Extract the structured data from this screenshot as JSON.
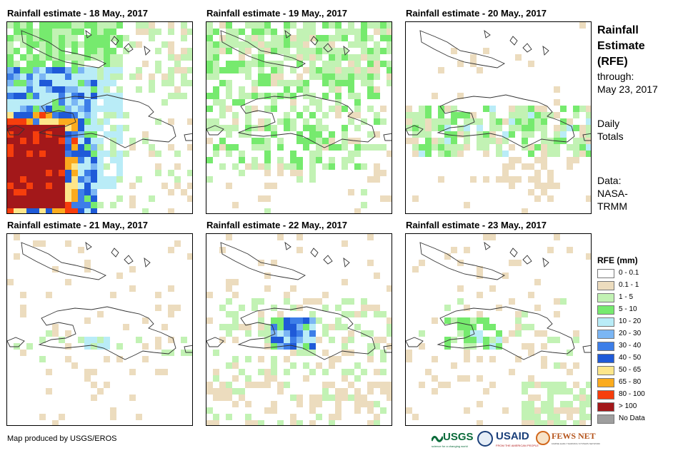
{
  "panels": [
    {
      "title": "Rainfall estimate - 18 May., 2017",
      "date": "18 May., 2017"
    },
    {
      "title": "Rainfall estimate - 19 May., 2017",
      "date": "19 May., 2017"
    },
    {
      "title": "Rainfall estimate - 20 May., 2017",
      "date": "20 May., 2017"
    },
    {
      "title": "Rainfall estimate - 21 May., 2017",
      "date": "21 May., 2017"
    },
    {
      "title": "Rainfall estimate - 22 May., 2017",
      "date": "22 May., 2017"
    },
    {
      "title": "Rainfall estimate - 23 May., 2017",
      "date": "23 May., 2017"
    }
  ],
  "side_info": {
    "title_line1": "Rainfall",
    "title_line2": "Estimate",
    "title_line3": "(RFE)",
    "through_label": "through:",
    "through_date": "May 23, 2017",
    "totals_line1": "Daily",
    "totals_line2": "Totals",
    "data_label": "Data:",
    "data_line1": "NASA-",
    "data_line2": "TRMM"
  },
  "legend": {
    "title": "RFE (mm)",
    "classes": [
      {
        "label": "0 - 0.1",
        "color": "#ffffff"
      },
      {
        "label": "0.1 - 1",
        "color": "#ecdcbe"
      },
      {
        "label": "1 - 5",
        "color": "#c2f2b4"
      },
      {
        "label": "5 - 10",
        "color": "#76ea6e"
      },
      {
        "label": "10 - 20",
        "color": "#b9ecf7"
      },
      {
        "label": "20 - 30",
        "color": "#7bb6f4"
      },
      {
        "label": "30 - 40",
        "color": "#3d7ee8"
      },
      {
        "label": "40 - 50",
        "color": "#1f5ad8"
      },
      {
        "label": "50 - 65",
        "color": "#fde68a"
      },
      {
        "label": "65 - 80",
        "color": "#fbab1e"
      },
      {
        "label": "80 - 100",
        "color": "#f63e0c"
      },
      {
        "label": "> 100",
        "color": "#a3181a"
      },
      {
        "label": "No Data",
        "color": "#9e9e9e"
      }
    ]
  },
  "credit": "Map produced by USGS/EROS",
  "logos": {
    "usgs": "USGS",
    "usgs_tagline": "science for a changing world",
    "usaid": "USAID",
    "usaid_tagline": "FROM THE AMERICAN PEOPLE",
    "fews": "FEWS NET",
    "fews_tagline": "FAMINE EARLY WARNING SYSTEMS NETWORK"
  },
  "icons": [
    "usgs-logo-icon",
    "usaid-seal-icon",
    "fews-net-logo-icon"
  ]
}
